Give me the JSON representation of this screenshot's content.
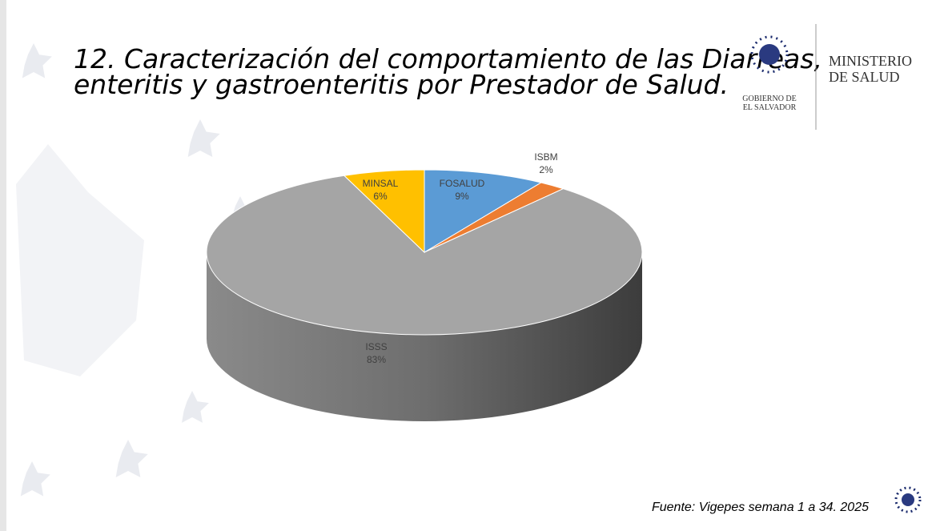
{
  "header": {
    "title_lines": [
      "12. Caracterización del comportamiento de las Diarreas,",
      "enteritis y gastroenteritis por Prestador de Salud."
    ],
    "logo_left": [
      "GOBIERNO DE",
      "EL SALVADOR"
    ],
    "logo_right": [
      "MINISTERIO",
      "DE SALUD"
    ]
  },
  "chart_data": {
    "type": "pie",
    "categories": [
      "FOSALUD",
      "ISBM",
      "ISSS",
      "MINSAL"
    ],
    "values": [
      9,
      2,
      83,
      6
    ],
    "value_labels": [
      "9%",
      "2%",
      "83%",
      "6%"
    ],
    "colors": [
      "#5b9bd5",
      "#ed7d31",
      "#a5a5a5",
      "#ffc000"
    ]
  },
  "footer": {
    "source": "Fuente:  Vigepes semana 1 a 34.  2025"
  }
}
